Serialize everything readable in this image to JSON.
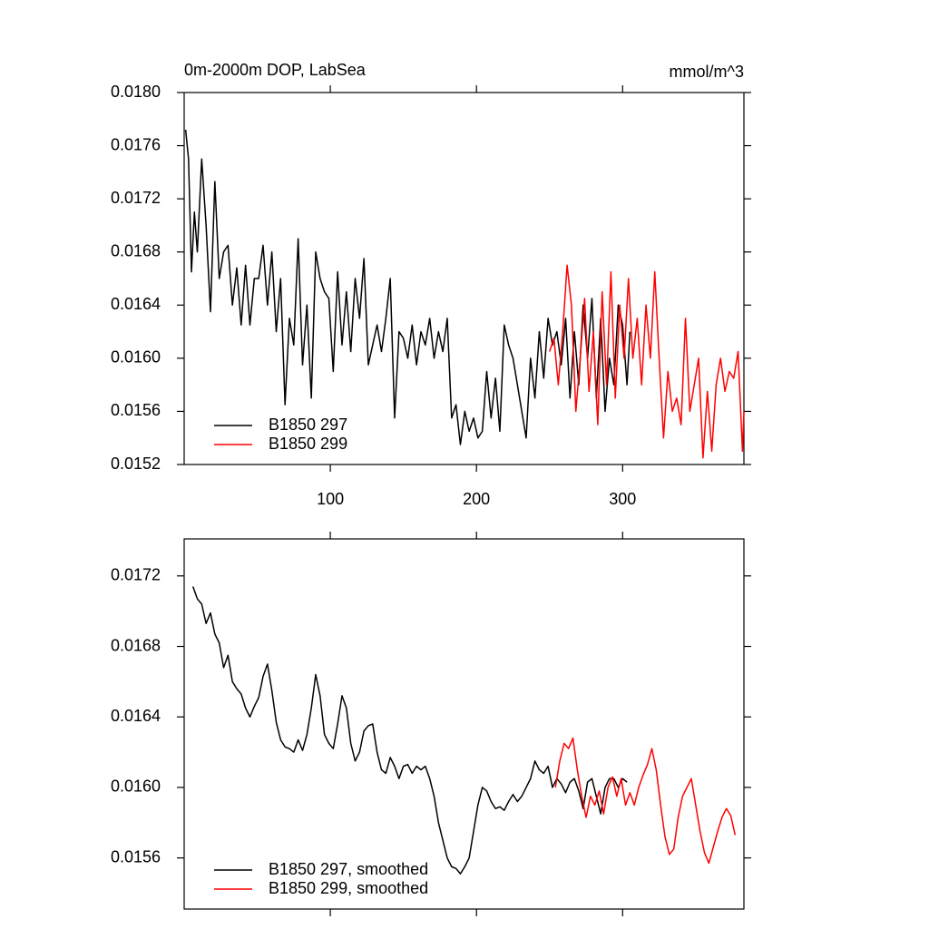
{
  "chart_data": [
    {
      "type": "line",
      "title": "0m-2000m DOP, LabSea",
      "units": "mmol/m^3",
      "xlim": [
        0,
        383
      ],
      "xticks": [
        100,
        200,
        300
      ],
      "x_tick_labels": true,
      "ylim": [
        0.0152,
        0.018
      ],
      "yticks": [
        {
          "value": 0.0152,
          "label": "0.0152"
        },
        {
          "value": 0.0156,
          "label": "0.0156"
        },
        {
          "value": 0.016,
          "label": "0.0160"
        },
        {
          "value": 0.0164,
          "label": "0.0164"
        },
        {
          "value": 0.0168,
          "label": "0.0168"
        },
        {
          "value": 0.0172,
          "label": "0.0172"
        },
        {
          "value": 0.0176,
          "label": "0.0176"
        },
        {
          "value": 0.018,
          "label": "0.0180"
        }
      ],
      "legend": "lower left",
      "series": [
        {
          "name": "B1850 297",
          "color": "#000000",
          "x": [
            1,
            3,
            5,
            7,
            9,
            12,
            15,
            18,
            21,
            24,
            27,
            30,
            33,
            36,
            39,
            42,
            45,
            48,
            51,
            54,
            57,
            60,
            63,
            66,
            69,
            72,
            75,
            78,
            81,
            84,
            87,
            90,
            93,
            96,
            99,
            102,
            105,
            108,
            111,
            114,
            117,
            120,
            123,
            126,
            129,
            132,
            135,
            138,
            141,
            144,
            147,
            150,
            153,
            156,
            159,
            162,
            165,
            168,
            171,
            174,
            177,
            180,
            183,
            186,
            189,
            192,
            195,
            198,
            201,
            204,
            207,
            210,
            213,
            216,
            219,
            222,
            225,
            228,
            231,
            234,
            237,
            240,
            243,
            246,
            249,
            252,
            255,
            258,
            261,
            264,
            267,
            270,
            273,
            276,
            279,
            282,
            285,
            288,
            291,
            294,
            297,
            300,
            303,
            305
          ],
          "values": [
            0.01772,
            0.0175,
            0.01665,
            0.0171,
            0.0168,
            0.0175,
            0.017,
            0.01635,
            0.01733,
            0.0166,
            0.0168,
            0.01685,
            0.0164,
            0.01668,
            0.01625,
            0.0167,
            0.01625,
            0.0166,
            0.0166,
            0.01685,
            0.0164,
            0.0168,
            0.0162,
            0.0166,
            0.01565,
            0.0163,
            0.0161,
            0.0169,
            0.01595,
            0.0164,
            0.0157,
            0.0168,
            0.0166,
            0.0165,
            0.01645,
            0.0159,
            0.01665,
            0.0161,
            0.0165,
            0.01605,
            0.0166,
            0.0163,
            0.01675,
            0.01595,
            0.0161,
            0.01625,
            0.01605,
            0.0163,
            0.0166,
            0.01555,
            0.0162,
            0.01615,
            0.016,
            0.01625,
            0.01595,
            0.0162,
            0.0161,
            0.0163,
            0.016,
            0.0162,
            0.01605,
            0.0163,
            0.01555,
            0.01565,
            0.01535,
            0.0156,
            0.01545,
            0.01555,
            0.0154,
            0.01545,
            0.0159,
            0.01555,
            0.01585,
            0.01545,
            0.01625,
            0.0161,
            0.016,
            0.0158,
            0.0156,
            0.0154,
            0.016,
            0.0157,
            0.0162,
            0.01585,
            0.0163,
            0.0161,
            0.0162,
            0.01595,
            0.0163,
            0.0157,
            0.0162,
            0.0158,
            0.0164,
            0.016,
            0.01645,
            0.0157,
            0.0163,
            0.0156,
            0.016,
            0.0158,
            0.0164,
            0.01625,
            0.0158,
            0.0162
          ]
        },
        {
          "name": "B1850 299",
          "color": "#ff0000",
          "x": [
            250,
            253,
            256,
            259,
            262,
            265,
            268,
            271,
            274,
            277,
            280,
            283,
            286,
            289,
            292,
            295,
            298,
            301,
            304,
            307,
            310,
            313,
            316,
            319,
            322,
            325,
            328,
            331,
            334,
            337,
            340,
            343,
            346,
            349,
            352,
            355,
            358,
            361,
            364,
            367,
            370,
            373,
            376,
            379,
            382,
            383
          ],
          "values": [
            0.01605,
            0.01615,
            0.0158,
            0.0162,
            0.0167,
            0.0164,
            0.0156,
            0.016,
            0.01645,
            0.01575,
            0.0162,
            0.0155,
            0.0165,
            0.0158,
            0.01665,
            0.0157,
            0.0164,
            0.016,
            0.0166,
            0.016,
            0.0163,
            0.0158,
            0.0164,
            0.016,
            0.01665,
            0.016,
            0.0154,
            0.0159,
            0.0156,
            0.0157,
            0.0155,
            0.0163,
            0.0156,
            0.0158,
            0.016,
            0.01525,
            0.01575,
            0.0153,
            0.0158,
            0.016,
            0.01575,
            0.0159,
            0.01585,
            0.01605,
            0.0153,
            0.0156
          ]
        }
      ]
    },
    {
      "type": "line",
      "xlim": [
        0,
        383
      ],
      "xticks": [
        100,
        200,
        300
      ],
      "x_tick_labels": false,
      "ylim": [
        0.01531,
        0.01741
      ],
      "yticks": [
        0.0156,
        {
          "value": 0.016,
          "label": "0.0160"
        },
        0.0164,
        0.0168,
        0.0172
      ],
      "legend": "lower left",
      "series": [
        {
          "name": "B1850 297, smoothed",
          "color": "#000000",
          "x": [
            6,
            9,
            12,
            15,
            18,
            21,
            24,
            27,
            30,
            33,
            36,
            39,
            42,
            45,
            48,
            51,
            54,
            57,
            60,
            63,
            66,
            69,
            72,
            75,
            78,
            81,
            84,
            87,
            90,
            93,
            96,
            99,
            102,
            105,
            108,
            111,
            114,
            117,
            120,
            123,
            126,
            129,
            132,
            135,
            138,
            141,
            144,
            147,
            150,
            153,
            156,
            159,
            162,
            165,
            168,
            171,
            174,
            177,
            180,
            183,
            186,
            189,
            192,
            195,
            198,
            201,
            204,
            207,
            210,
            213,
            216,
            219,
            222,
            225,
            228,
            231,
            234,
            237,
            240,
            243,
            246,
            249,
            252,
            255,
            258,
            261,
            264,
            267,
            270,
            273,
            276,
            279,
            282,
            285,
            288,
            291,
            294,
            297,
            300,
            303
          ],
          "values": [
            0.01714,
            0.01707,
            0.01704,
            0.01693,
            0.01699,
            0.01687,
            0.01682,
            0.01668,
            0.01675,
            0.0166,
            0.01656,
            0.01653,
            0.01645,
            0.0164,
            0.01646,
            0.01651,
            0.01663,
            0.0167,
            0.01655,
            0.01637,
            0.01627,
            0.01623,
            0.01622,
            0.0162,
            0.01627,
            0.01621,
            0.0163,
            0.01645,
            0.01664,
            0.01652,
            0.0163,
            0.01625,
            0.01622,
            0.01636,
            0.01652,
            0.01645,
            0.01625,
            0.01615,
            0.0162,
            0.01632,
            0.01635,
            0.01636,
            0.0162,
            0.0161,
            0.01608,
            0.01617,
            0.01612,
            0.01605,
            0.01612,
            0.01613,
            0.01608,
            0.01612,
            0.0161,
            0.01612,
            0.01605,
            0.01595,
            0.0158,
            0.0157,
            0.0156,
            0.01555,
            0.01554,
            0.01551,
            0.01555,
            0.0156,
            0.01575,
            0.0159,
            0.016,
            0.01598,
            0.01592,
            0.01588,
            0.01589,
            0.01587,
            0.01592,
            0.01596,
            0.01592,
            0.01595,
            0.016,
            0.01605,
            0.01615,
            0.0161,
            0.01608,
            0.01612,
            0.016,
            0.01605,
            0.01602,
            0.01597,
            0.01603,
            0.01605,
            0.01598,
            0.01588,
            0.01603,
            0.01605,
            0.01595,
            0.01585,
            0.016,
            0.01605,
            0.01605,
            0.016,
            0.01605,
            0.01603
          ]
        },
        {
          "name": "B1850 299, smoothed",
          "color": "#ff0000",
          "x": [
            254,
            257,
            260,
            263,
            266,
            269,
            272,
            275,
            278,
            281,
            284,
            287,
            290,
            293,
            296,
            299,
            302,
            305,
            308,
            311,
            314,
            317,
            320,
            323,
            326,
            329,
            332,
            335,
            338,
            341,
            344,
            347,
            350,
            353,
            356,
            359,
            362,
            365,
            368,
            371,
            374,
            377
          ],
          "values": [
            0.016,
            0.01615,
            0.01625,
            0.01622,
            0.01628,
            0.0161,
            0.01595,
            0.01583,
            0.01595,
            0.0159,
            0.01598,
            0.01585,
            0.016,
            0.01606,
            0.01595,
            0.01605,
            0.0159,
            0.01597,
            0.0159,
            0.016,
            0.01607,
            0.01613,
            0.01622,
            0.0161,
            0.0159,
            0.01572,
            0.01562,
            0.01565,
            0.01583,
            0.01595,
            0.016,
            0.01605,
            0.0159,
            0.01575,
            0.01563,
            0.01557,
            0.01566,
            0.01575,
            0.01583,
            0.01588,
            0.01584,
            0.01573
          ]
        }
      ]
    }
  ]
}
